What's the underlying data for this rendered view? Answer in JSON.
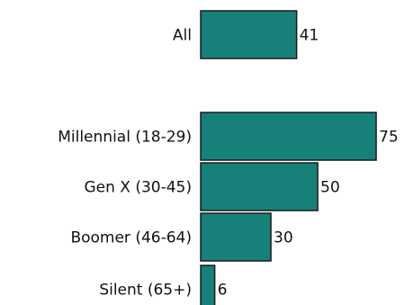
{
  "chart_data": {
    "type": "bar",
    "orientation": "horizontal",
    "categories": [
      "All",
      "Millennial (18-29)",
      "Gen X (30-45)",
      "Boomer (46-64)",
      "Silent (65+)"
    ],
    "values": [
      41,
      75,
      50,
      30,
      6
    ],
    "value_labels": [
      "41",
      "75",
      "50",
      "30",
      "6"
    ],
    "xlim": [
      0,
      75
    ],
    "grid": false,
    "legend": "none",
    "bar_color": "#178079"
  }
}
